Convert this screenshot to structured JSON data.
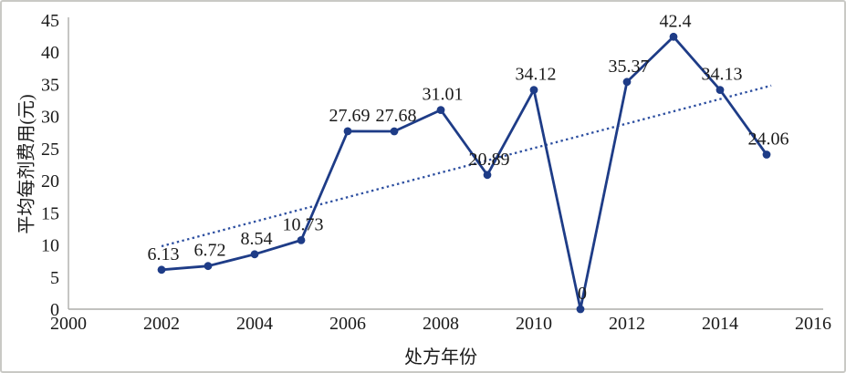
{
  "chart_data": {
    "type": "line",
    "title": "",
    "xlabel": "处方年份",
    "ylabel": "平均每剂费用(元)",
    "x": [
      2002,
      2003,
      2004,
      2005,
      2006,
      2007,
      2008,
      2009,
      2010,
      2011,
      2012,
      2013,
      2014,
      2015
    ],
    "series": [
      {
        "name": "平均每剂费用(元)",
        "values": [
          6.13,
          6.72,
          8.54,
          10.73,
          27.69,
          27.68,
          31.01,
          20.89,
          34.12,
          0,
          35.37,
          42.4,
          34.13,
          24.06
        ]
      }
    ],
    "point_labels": [
      "6.13",
      "6.72",
      "8.54",
      "10.73",
      "27.69",
      "27.68",
      "31.01",
      "20.89",
      "34.12",
      "0",
      "35.37",
      "42.4",
      "34.13",
      "24.06"
    ],
    "xlim": [
      2000,
      2016
    ],
    "ylim": [
      0,
      45
    ],
    "x_ticks": [
      2000,
      2002,
      2004,
      2006,
      2008,
      2010,
      2012,
      2014,
      2016
    ],
    "y_ticks": [
      0,
      5,
      10,
      15,
      20,
      25,
      30,
      35,
      40,
      45
    ],
    "trendline": {
      "style": "dotted",
      "from": {
        "x": 2002.0,
        "y": 9.8
      },
      "to": {
        "x": 2015.1,
        "y": 34.8
      }
    },
    "grid": false,
    "legend": false,
    "colors": {
      "line": "#1e3c87",
      "marker": "#1e3c87",
      "trendline": "#2d4fa0",
      "axis": "#aeaeaa",
      "text": "#1a1a1a",
      "frame": "#c9c9c5"
    }
  }
}
